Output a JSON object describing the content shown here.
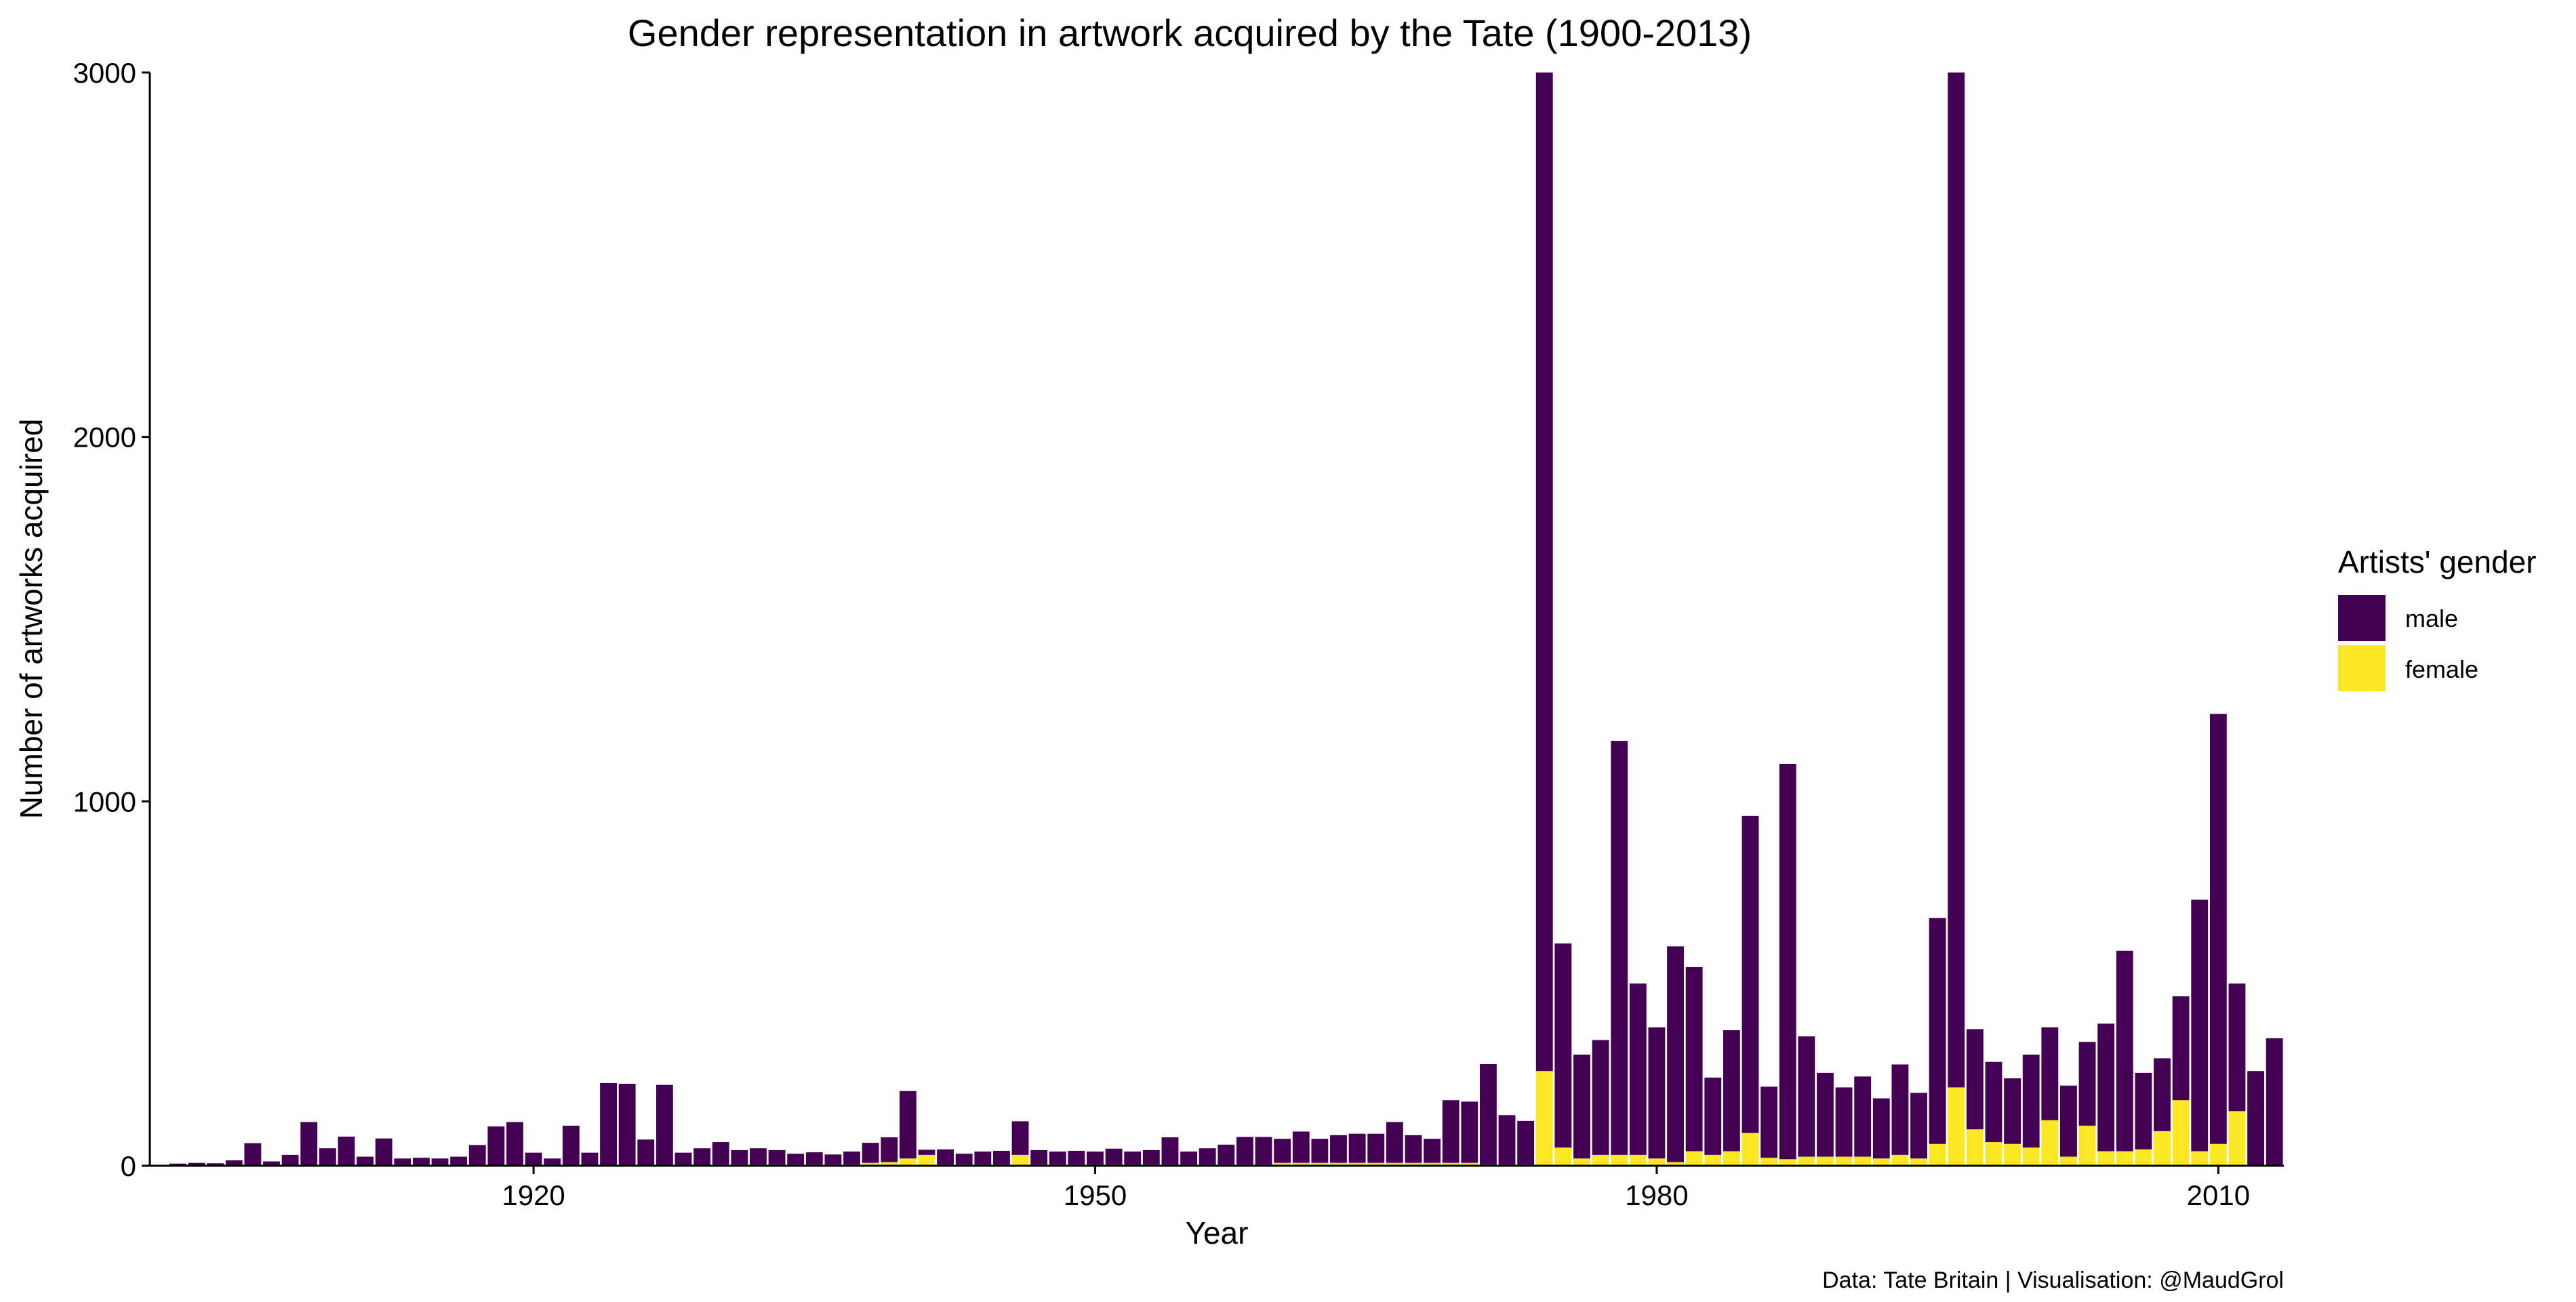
{
  "chart_data": {
    "type": "bar",
    "stacked": true,
    "title": "Gender representation in artwork acquired by the Tate (1900-2013)",
    "xlabel": "Year",
    "ylabel": "Number of artworks acquired",
    "caption": "Data: Tate Britain | Visualisation: @MaudGrol",
    "xlim": [
      1899.5,
      2013.5
    ],
    "ylim": [
      0,
      3000
    ],
    "x_ticks": [
      1920,
      1950,
      1980,
      2010
    ],
    "y_ticks": [
      0,
      1000,
      2000,
      3000
    ],
    "grid": false,
    "legend": {
      "title": "Artists' gender",
      "position": "right",
      "entries": [
        {
          "label": "male",
          "color": "#440154"
        },
        {
          "label": "female",
          "color": "#FDE725"
        }
      ]
    },
    "categories": [
      1901,
      1902,
      1903,
      1904,
      1905,
      1906,
      1907,
      1908,
      1909,
      1910,
      1911,
      1912,
      1913,
      1914,
      1915,
      1916,
      1917,
      1918,
      1919,
      1920,
      1921,
      1922,
      1923,
      1924,
      1925,
      1926,
      1927,
      1928,
      1929,
      1930,
      1931,
      1932,
      1933,
      1934,
      1935,
      1936,
      1937,
      1938,
      1939,
      1940,
      1941,
      1942,
      1943,
      1944,
      1945,
      1946,
      1947,
      1948,
      1949,
      1950,
      1951,
      1952,
      1953,
      1954,
      1955,
      1956,
      1957,
      1958,
      1959,
      1960,
      1961,
      1962,
      1963,
      1964,
      1965,
      1966,
      1967,
      1968,
      1969,
      1970,
      1971,
      1972,
      1973,
      1974,
      1975,
      1976,
      1977,
      1978,
      1979,
      1980,
      1981,
      1982,
      1983,
      1984,
      1985,
      1986,
      1987,
      1988,
      1989,
      1990,
      1991,
      1992,
      1993,
      1994,
      1995,
      1996,
      1997,
      1998,
      1999,
      2000,
      2001,
      2002,
      2003,
      2004,
      2005,
      2006,
      2007,
      2008,
      2009,
      2010,
      2011,
      2012,
      2013
    ],
    "series": [
      {
        "name": "male",
        "values": [
          6,
          8,
          7,
          15,
          62,
          12,
          30,
          120,
          48,
          80,
          25,
          75,
          20,
          22,
          20,
          25,
          55,
          108,
          120,
          36,
          20,
          110,
          36,
          225,
          223,
          70,
          220,
          34,
          46,
          62,
          40,
          45,
          40,
          30,
          34,
          28,
          36,
          55,
          68,
          185,
          14,
          42,
          30,
          36,
          38,
          92,
          40,
          36,
          38,
          36,
          44,
          36,
          40,
          75,
          36,
          45,
          55,
          76,
          76,
          66,
          86,
          66,
          76,
          80,
          80,
          112,
          76,
          66,
          172,
          168,
          276,
          136,
          120,
          2740,
          560,
          285,
          315,
          1136,
          470,
          360,
          592,
          505,
          212,
          332,
          870,
          195,
          1085,
          330,
          230,
          190,
          220,
          165,
          248,
          180,
          620,
          2785,
          275,
          220,
          180,
          255,
          255,
          195,
          230,
          350,
          550,
          210,
          200,
          285,
          690,
          1180,
          350,
          260,
          350
        ]
      },
      {
        "name": "female",
        "values": [
          0,
          0,
          0,
          0,
          0,
          0,
          0,
          0,
          0,
          0,
          0,
          0,
          0,
          0,
          0,
          0,
          2,
          0,
          0,
          0,
          0,
          0,
          0,
          2,
          2,
          2,
          2,
          2,
          2,
          3,
          3,
          3,
          3,
          3,
          3,
          3,
          3,
          8,
          10,
          20,
          30,
          3,
          3,
          3,
          3,
          30,
          3,
          3,
          3,
          3,
          3,
          3,
          3,
          3,
          3,
          3,
          3,
          3,
          3,
          8,
          8,
          8,
          8,
          8,
          8,
          8,
          8,
          8,
          8,
          8,
          3,
          3,
          3,
          260,
          50,
          20,
          30,
          30,
          30,
          20,
          10,
          40,
          30,
          40,
          90,
          22,
          18,
          25,
          25,
          25,
          25,
          20,
          30,
          20,
          60,
          215,
          100,
          65,
          60,
          50,
          125,
          25,
          110,
          40,
          40,
          45,
          95,
          180,
          40,
          60,
          150,
          0,
          0
        ]
      }
    ]
  }
}
